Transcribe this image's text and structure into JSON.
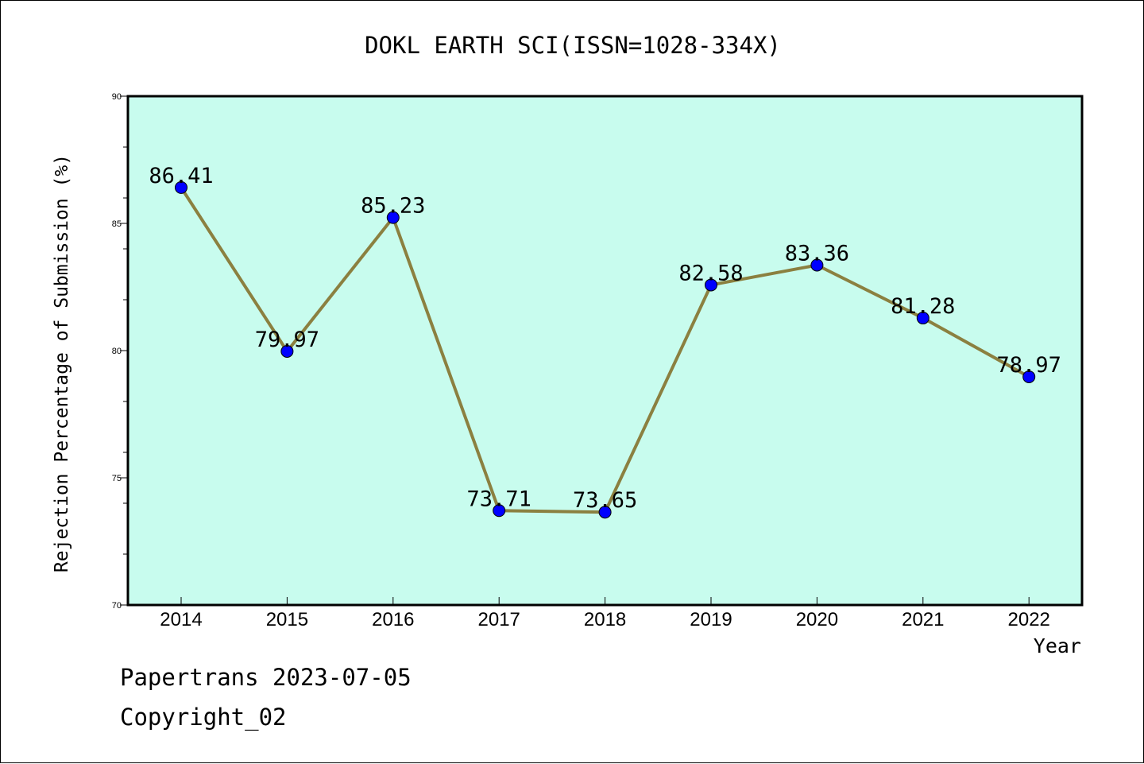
{
  "chart_data": {
    "type": "line",
    "title": "DOKL EARTH SCI(ISSN=1028-334X)",
    "xlabel": "Year",
    "ylabel": "Rejection Percentage of Submission (%)",
    "categories": [
      "2014",
      "2015",
      "2016",
      "2017",
      "2018",
      "2019",
      "2020",
      "2021",
      "2022"
    ],
    "values": [
      86.41,
      79.97,
      85.23,
      73.71,
      73.65,
      82.58,
      83.36,
      81.28,
      78.97
    ],
    "data_labels": [
      "86.41",
      "79.97",
      "85.23",
      "73.71",
      "73.65",
      "82.58",
      "83.36",
      "81.28",
      "78.97"
    ],
    "ylim": [
      70,
      90
    ],
    "y_ticks": [
      70,
      75,
      80,
      85,
      90
    ],
    "y_tick_labels": [
      "70",
      "75",
      "80",
      "85",
      "90"
    ],
    "grid": false,
    "colors": {
      "plot_background": "#c8fcee",
      "line": "#8b8040",
      "marker": "#0000ff",
      "axis": "#000000"
    }
  },
  "footer": {
    "line1": "Papertrans 2023-07-05",
    "line2": "Copyright_02"
  }
}
